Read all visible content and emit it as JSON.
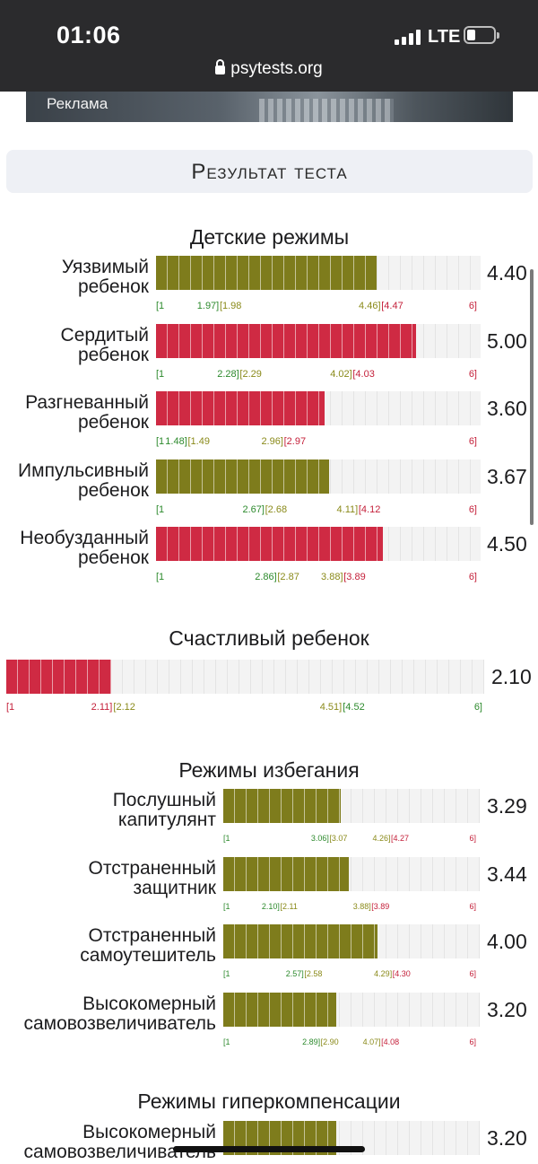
{
  "status_bar": {
    "time": "01:06",
    "network": "LTE",
    "url": "psytests.org"
  },
  "ad": {
    "label": "Реклама"
  },
  "result_title": "Результат теста",
  "sections": {
    "child": {
      "title": "Детские режимы",
      "rows": [
        {
          "label_1": "Уязвимый",
          "label_2": "ребенок",
          "score": "4.40",
          "value": 4.4,
          "color": "#7e7c1c",
          "scale": [
            "[1",
            "1.97]",
            "[1.98",
            "4.46]",
            "[4.47",
            "6]"
          ]
        },
        {
          "label_1": "Сердитый",
          "label_2": "ребенок",
          "score": "5.00",
          "value": 5.0,
          "color": "#cf2a43",
          "scale": [
            "[1",
            "2.28]",
            "[2.29",
            "4.02]",
            "[4.03",
            "6]"
          ]
        },
        {
          "label_1": "Разгневанный",
          "label_2": "ребенок",
          "score": "3.60",
          "value": 3.6,
          "color": "#cf2a43",
          "scale": [
            "[1",
            "1.48]",
            "[1.49",
            "2.96]",
            "[2.97",
            "6]"
          ]
        },
        {
          "label_1": "Импульсивный",
          "label_2": "ребенок",
          "score": "3.67",
          "value": 3.67,
          "color": "#7e7c1c",
          "scale": [
            "[1",
            "2.67]",
            "[2.68",
            "4.11]",
            "[4.12",
            "6]"
          ]
        },
        {
          "label_1": "Необузданный",
          "label_2": "ребенок",
          "score": "4.50",
          "value": 4.5,
          "color": "#cf2a43",
          "scale": [
            "[1",
            "2.86]",
            "[2.87",
            "3.88]",
            "[3.89",
            "6]"
          ]
        }
      ]
    },
    "happy": {
      "title": "Счастливый ребенок",
      "score": "2.10",
      "value": 2.1,
      "color": "#cf2a43",
      "scale": [
        "[1",
        "2.11]",
        "[2.12",
        "4.51]",
        "[4.52",
        "6]"
      ]
    },
    "avoid": {
      "title": "Режимы избегания",
      "rows": [
        {
          "label_1": "Послушный",
          "label_2": "капитулянт",
          "score": "3.29",
          "value": 3.29,
          "color": "#7e7c1c",
          "scale": [
            "[1",
            "3.06]",
            "[3.07",
            "4.26]",
            "[4.27",
            "6]"
          ]
        },
        {
          "label_1": "Отстраненный",
          "label_2": "защитник",
          "score": "3.44",
          "value": 3.44,
          "color": "#7e7c1c",
          "scale": [
            "[1",
            "2.10]",
            "[2.11",
            "3.88]",
            "[3.89",
            "6]"
          ]
        },
        {
          "label_1": "Отстраненный",
          "label_2": "самоутешитель",
          "score": "4.00",
          "value": 4.0,
          "color": "#7e7c1c",
          "scale": [
            "[1",
            "2.57]",
            "[2.58",
            "4.29]",
            "[4.30",
            "6]"
          ]
        },
        {
          "label_1": "Высокомерный",
          "label_2": "самовозвеличиватель",
          "score": "3.20",
          "value": 3.2,
          "color": "#7e7c1c",
          "scale": [
            "[1",
            "2.89]",
            "[2.90",
            "4.07]",
            "[4.08",
            "6]"
          ]
        }
      ]
    },
    "hyper": {
      "title": "Режимы гиперкомпенсации",
      "rows": [
        {
          "label_1": "Высокомерный",
          "label_2": "самовозвеличиватель",
          "score": "3.20",
          "value": 3.2,
          "color": "#7e7c1c"
        }
      ]
    }
  }
}
